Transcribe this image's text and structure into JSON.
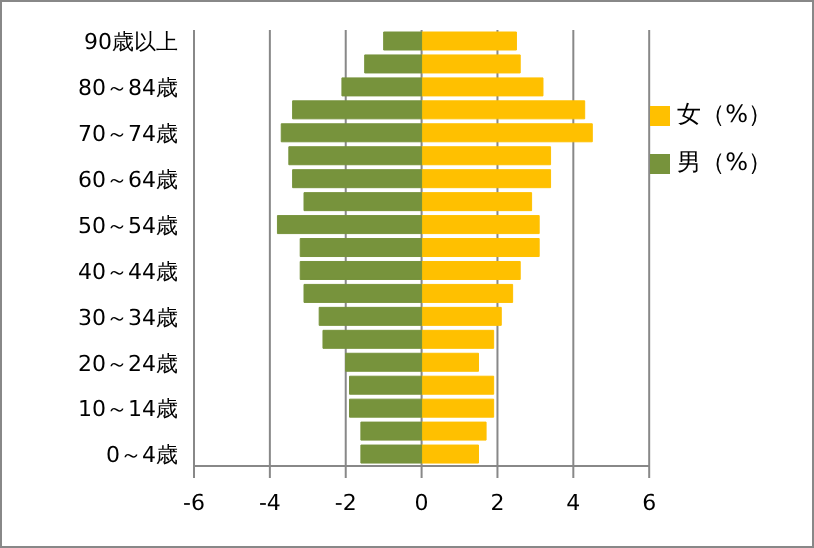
{
  "chart_data": {
    "type": "bar",
    "orientation": "horizontal",
    "stacked": true,
    "categories": [
      "90歳以上",
      null,
      "80～84歳",
      null,
      "70～74歳",
      null,
      "60～64歳",
      null,
      "50～54歳",
      null,
      "40～44歳",
      null,
      "30～34歳",
      null,
      "20～24歳",
      null,
      "10～14歳",
      null,
      "0～4歳"
    ],
    "series": [
      {
        "name": "女（%）",
        "color": "#ffc000",
        "values": [
          2.5,
          2.6,
          3.2,
          4.3,
          4.5,
          3.4,
          3.4,
          2.9,
          3.1,
          3.1,
          2.6,
          2.4,
          2.1,
          1.9,
          1.5,
          1.9,
          1.9,
          1.7,
          1.5
        ]
      },
      {
        "name": "男（%）",
        "color": "#77933c",
        "values": [
          -1.0,
          -1.5,
          -2.1,
          -3.4,
          -3.7,
          -3.5,
          -3.4,
          -3.1,
          -3.8,
          -3.2,
          -3.2,
          -3.1,
          -2.7,
          -2.6,
          -2.0,
          -1.9,
          -1.9,
          -1.6,
          -1.6
        ]
      }
    ],
    "xlim": [
      -6,
      6
    ],
    "xticks": [
      -6,
      -4,
      -2,
      0,
      2,
      4,
      6
    ],
    "grid": "x",
    "legend": "right"
  }
}
